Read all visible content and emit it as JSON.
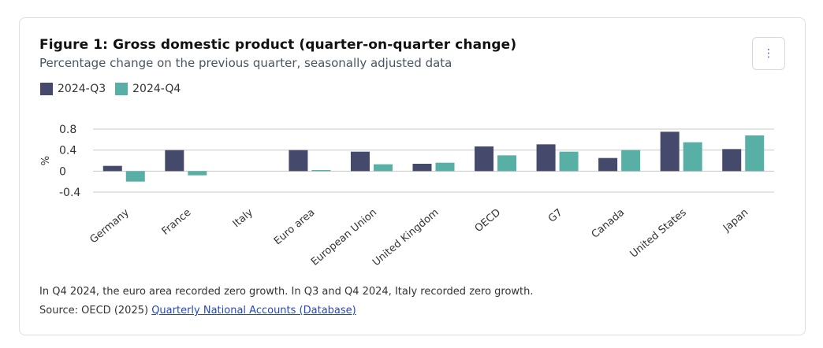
{
  "header": {
    "title": "Figure 1: Gross domestic product (quarter-on-quarter change)",
    "subtitle": "Percentage change on the previous quarter, seasonally adjusted data",
    "menu_icon": "vertical-ellipsis-icon"
  },
  "chart_data": {
    "type": "bar",
    "categories": [
      "Germany",
      "France",
      "Italy",
      "Euro area",
      "European Union",
      "United Kingdom",
      "OECD",
      "G7",
      "Canada",
      "United States",
      "Japan"
    ],
    "series": [
      {
        "name": "2024-Q3",
        "color": "#454a6c",
        "values": [
          0.1,
          0.4,
          0.0,
          0.4,
          0.37,
          0.14,
          0.47,
          0.51,
          0.25,
          0.75,
          0.42
        ]
      },
      {
        "name": "2024-Q4",
        "color": "#58afa5",
        "values": [
          -0.2,
          -0.08,
          0.0,
          0.02,
          0.13,
          0.16,
          0.3,
          0.37,
          0.4,
          0.55,
          0.68
        ]
      }
    ],
    "ylabel": "%",
    "ylim": [
      -0.4,
      0.8
    ],
    "yticks": [
      0.8,
      0.4,
      0,
      -0.4
    ],
    "ytick_labels": [
      "0.8",
      "0.4",
      "0",
      "-0.4"
    ],
    "grid": true,
    "legend": "top-left"
  },
  "footer": {
    "note": "In Q4 2024, the euro area recorded zero growth. In Q3 and Q4 2024, Italy recorded zero growth.",
    "source_prefix": "Source: OECD (2025) ",
    "source_link": "Quarterly National Accounts (Database)"
  }
}
